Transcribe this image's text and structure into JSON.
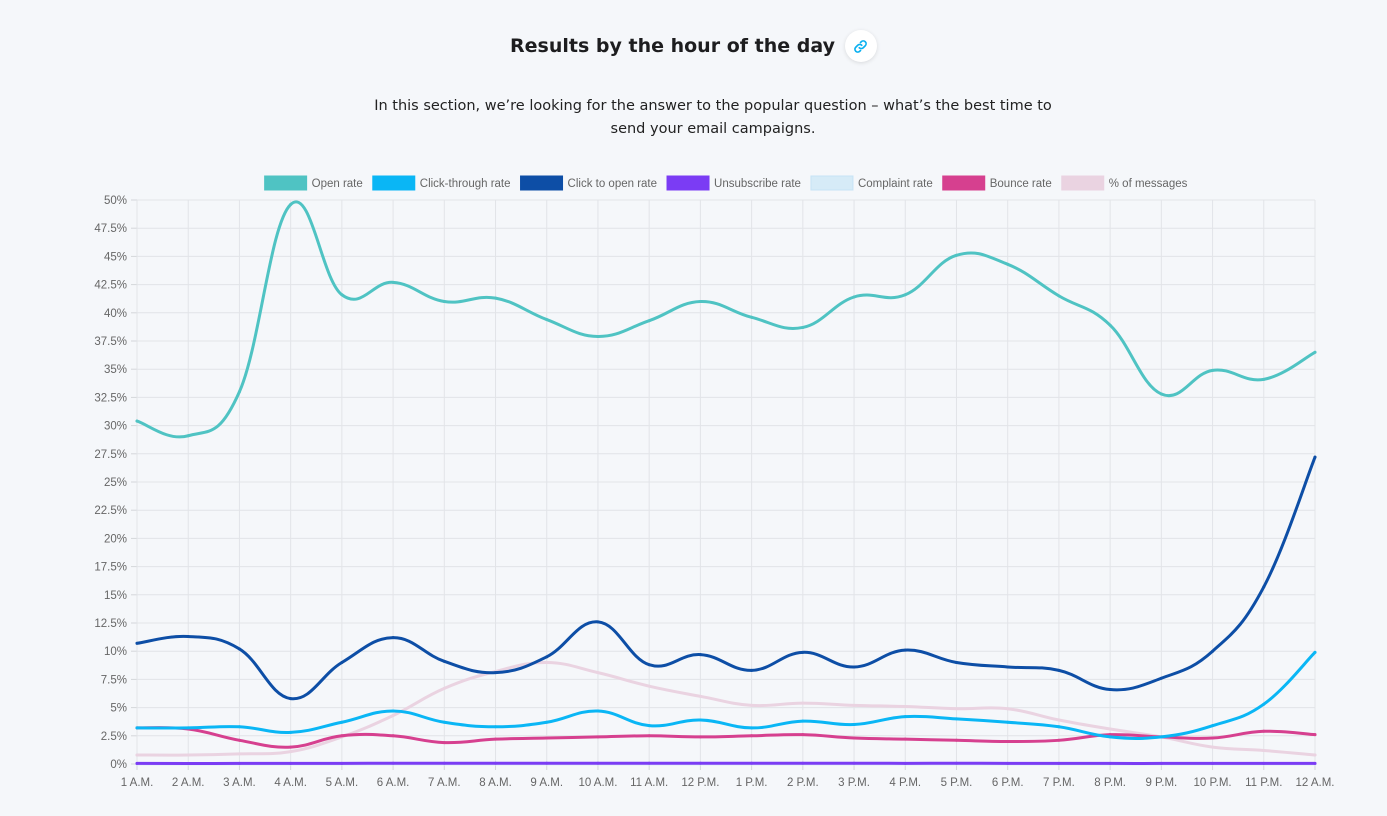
{
  "header": {
    "title": "Results by the hour of the day",
    "intro": "In this section, we’re looking for the answer to the popular question – what’s the best time to send your email campaigns.",
    "link_icon": "link-icon"
  },
  "colors": {
    "background": "#f5f7fa",
    "link_icon": "#0ab0f0"
  },
  "chart_data": {
    "type": "line",
    "title": "",
    "xlabel": "",
    "ylabel": "",
    "ylim": [
      0,
      50
    ],
    "y_ticks": [
      "0%",
      "2.5%",
      "5%",
      "7.5%",
      "10%",
      "12.5%",
      "15%",
      "17.5%",
      "20%",
      "22.5%",
      "25%",
      "27.5%",
      "30%",
      "32.5%",
      "35%",
      "37.5%",
      "40%",
      "42.5%",
      "45%",
      "47.5%",
      "50%"
    ],
    "grid": true,
    "legend_position": "top",
    "categories": [
      "1 A.M.",
      "2 A.M.",
      "3 A.M.",
      "4 A.M.",
      "5 A.M.",
      "6 A.M.",
      "7 A.M.",
      "8 A.M.",
      "9 A.M.",
      "10 A.M.",
      "11 A.M.",
      "12 P.M.",
      "1 P.M.",
      "2 P.M.",
      "3 P.M.",
      "4 P.M.",
      "5 P.M.",
      "6 P.M.",
      "7 P.M.",
      "8 P.M.",
      "9 P.M.",
      "10 P.M.",
      "11 P.M.",
      "12 A.M."
    ],
    "series": [
      {
        "name": "Open rate",
        "color": "#4fc3c3",
        "values": [
          30.4,
          29.1,
          33.0,
          49.6,
          41.6,
          42.7,
          41.0,
          41.3,
          39.4,
          37.9,
          39.3,
          41.0,
          39.6,
          38.7,
          41.4,
          41.6,
          45.1,
          44.3,
          41.5,
          38.9,
          32.8,
          34.9,
          34.1,
          36.5
        ]
      },
      {
        "name": "Click-through rate",
        "color": "#0ab6f5",
        "values": [
          3.2,
          3.2,
          3.3,
          2.8,
          3.7,
          4.7,
          3.7,
          3.3,
          3.7,
          4.7,
          3.4,
          3.9,
          3.2,
          3.8,
          3.5,
          4.2,
          4.0,
          3.7,
          3.3,
          2.4,
          2.4,
          3.4,
          5.3,
          9.9
        ]
      },
      {
        "name": "Click to open rate",
        "color": "#0d4ea6",
        "values": [
          10.7,
          11.3,
          10.2,
          5.8,
          9.0,
          11.2,
          9.1,
          8.1,
          9.5,
          12.6,
          8.8,
          9.7,
          8.3,
          9.9,
          8.6,
          10.1,
          9.0,
          8.6,
          8.3,
          6.6,
          7.6,
          10.0,
          15.7,
          27.2
        ]
      },
      {
        "name": "Unsubscribe rate",
        "color": "#7b3cf4",
        "values": [
          0.05,
          0.04,
          0.05,
          0.06,
          0.06,
          0.07,
          0.07,
          0.07,
          0.07,
          0.07,
          0.07,
          0.07,
          0.07,
          0.07,
          0.07,
          0.06,
          0.07,
          0.06,
          0.06,
          0.05,
          0.05,
          0.05,
          0.05,
          0.05
        ]
      },
      {
        "name": "Complaint rate",
        "color": "#d6ebf7",
        "values": [
          0.01,
          0.01,
          0.01,
          0.01,
          0.01,
          0.01,
          0.01,
          0.01,
          0.01,
          0.01,
          0.01,
          0.01,
          0.01,
          0.01,
          0.01,
          0.01,
          0.01,
          0.01,
          0.01,
          0.01,
          0.01,
          0.01,
          0.01,
          0.01
        ]
      },
      {
        "name": "Bounce rate",
        "color": "#d6408f",
        "values": [
          3.2,
          3.1,
          2.1,
          1.5,
          2.5,
          2.5,
          1.9,
          2.2,
          2.3,
          2.4,
          2.5,
          2.4,
          2.5,
          2.6,
          2.3,
          2.2,
          2.1,
          2.0,
          2.1,
          2.6,
          2.4,
          2.3,
          2.9,
          2.6
        ]
      },
      {
        "name": "% of messages",
        "color": "#ead3e1",
        "values": [
          0.8,
          0.8,
          0.9,
          1.1,
          2.4,
          4.3,
          6.7,
          8.2,
          9.0,
          8.1,
          6.9,
          6.0,
          5.2,
          5.4,
          5.2,
          5.1,
          4.9,
          4.9,
          3.9,
          3.1,
          2.4,
          1.5,
          1.2,
          0.8
        ]
      }
    ]
  }
}
